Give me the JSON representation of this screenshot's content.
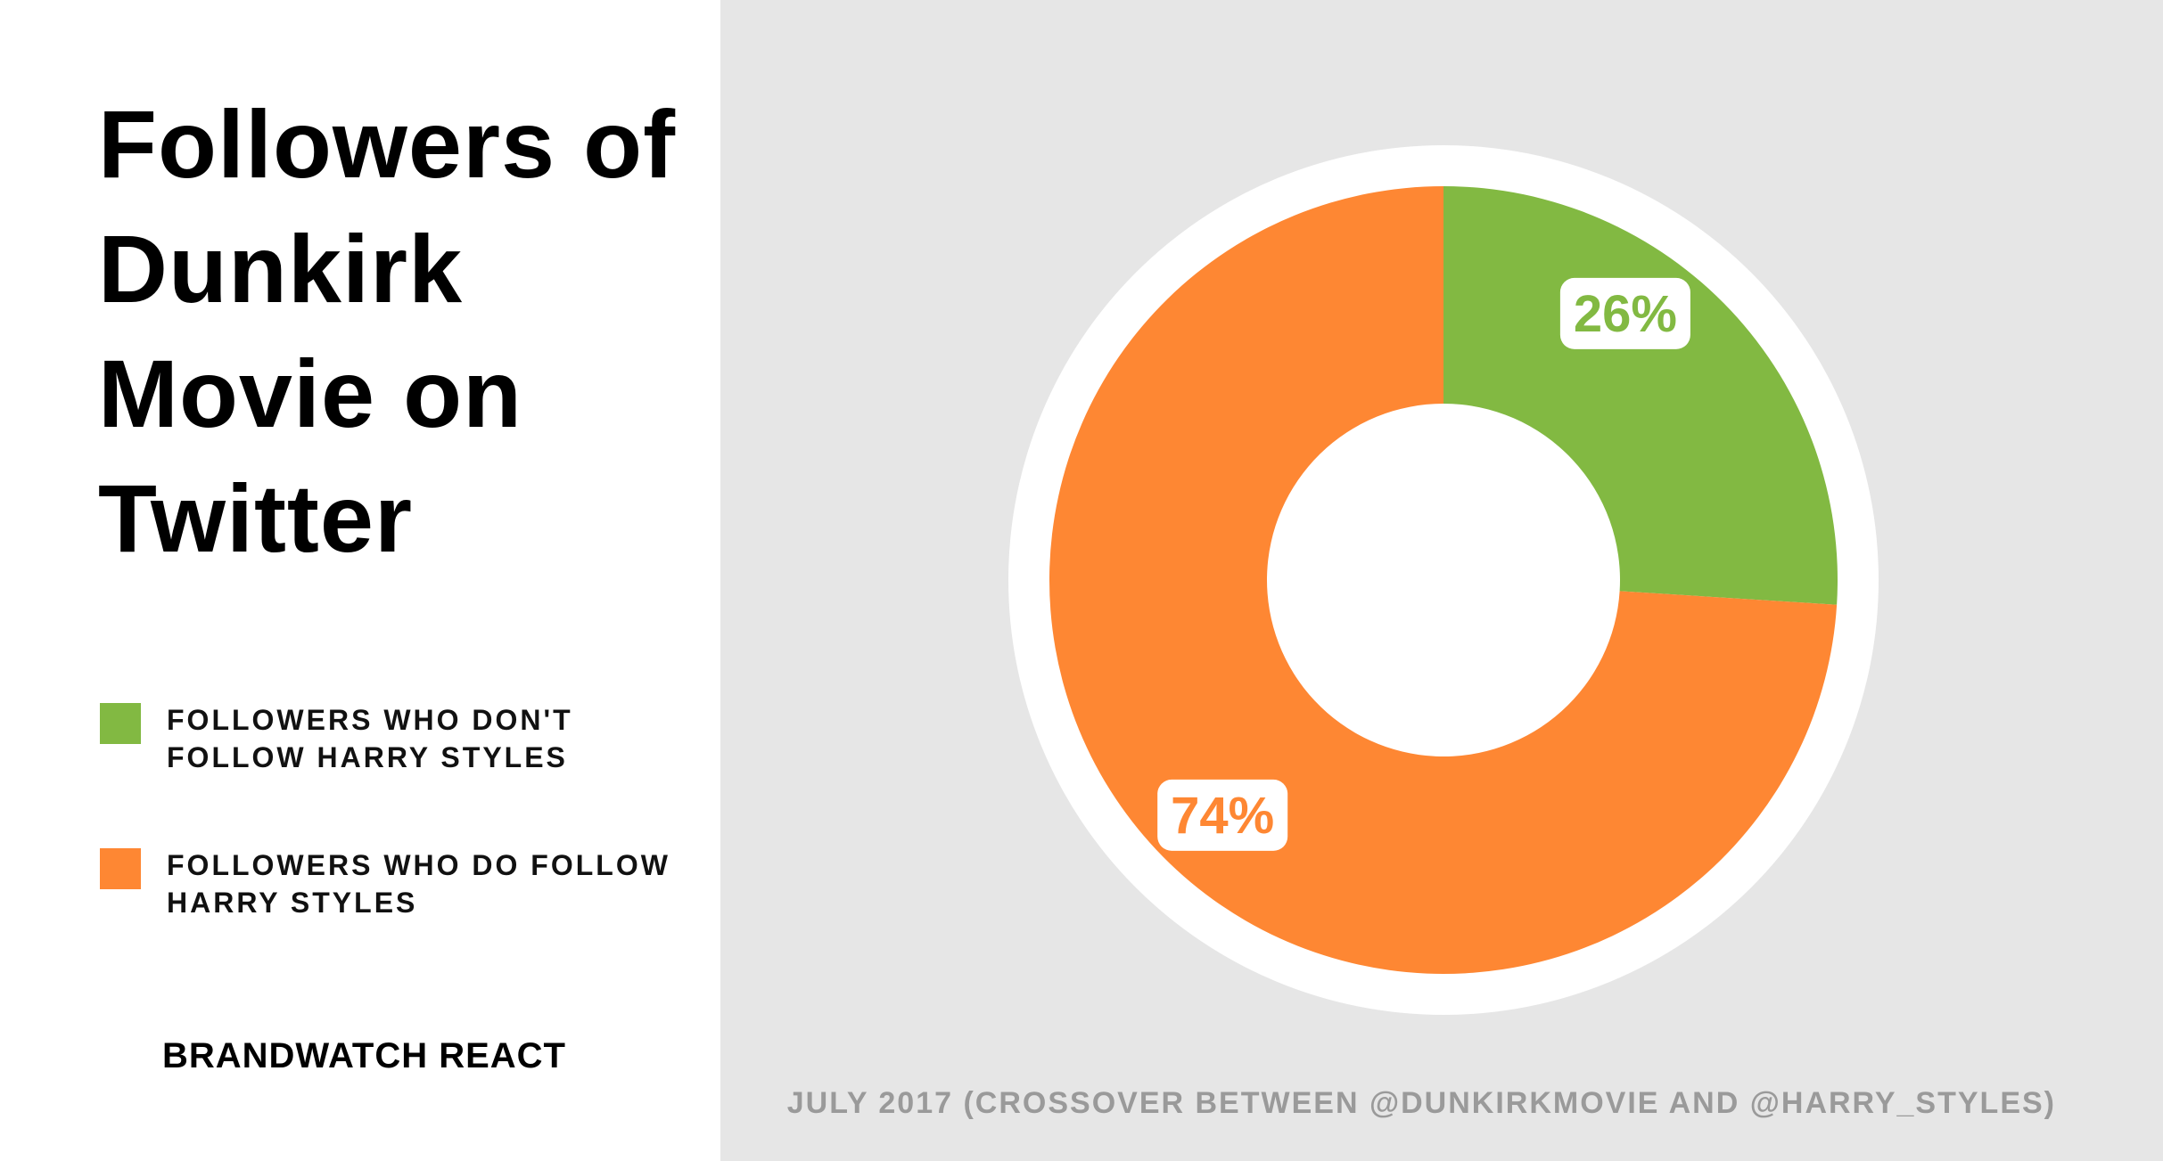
{
  "title": "Followers of Dunkirk Movie on Twitter",
  "brand": "BRANDWATCH REACT",
  "footnote": "JULY 2017 (CROSSOVER BETWEEN @DUNKIRKMOVIE AND @HARRY_STYLES)",
  "legend": [
    {
      "label": "FOLLOWERS WHO DON'T FOLLOW HARRY STYLES",
      "color": "#82b942"
    },
    {
      "label": "FOLLOWERS WHO DO FOLLOW HARRY STYLES",
      "color": "#fe8733"
    }
  ],
  "chart_data": {
    "type": "pie",
    "style": "donut",
    "title": "Followers of Dunkirk Movie on Twitter",
    "categories": [
      "FOLLOWERS WHO DON'T FOLLOW HARRY STYLES",
      "FOLLOWERS WHO DO FOLLOW HARRY STYLES"
    ],
    "values": [
      26,
      74
    ],
    "value_labels": [
      "26%",
      "74%"
    ],
    "colors": [
      "#82b942",
      "#fe8733"
    ],
    "legend_position": "left"
  }
}
